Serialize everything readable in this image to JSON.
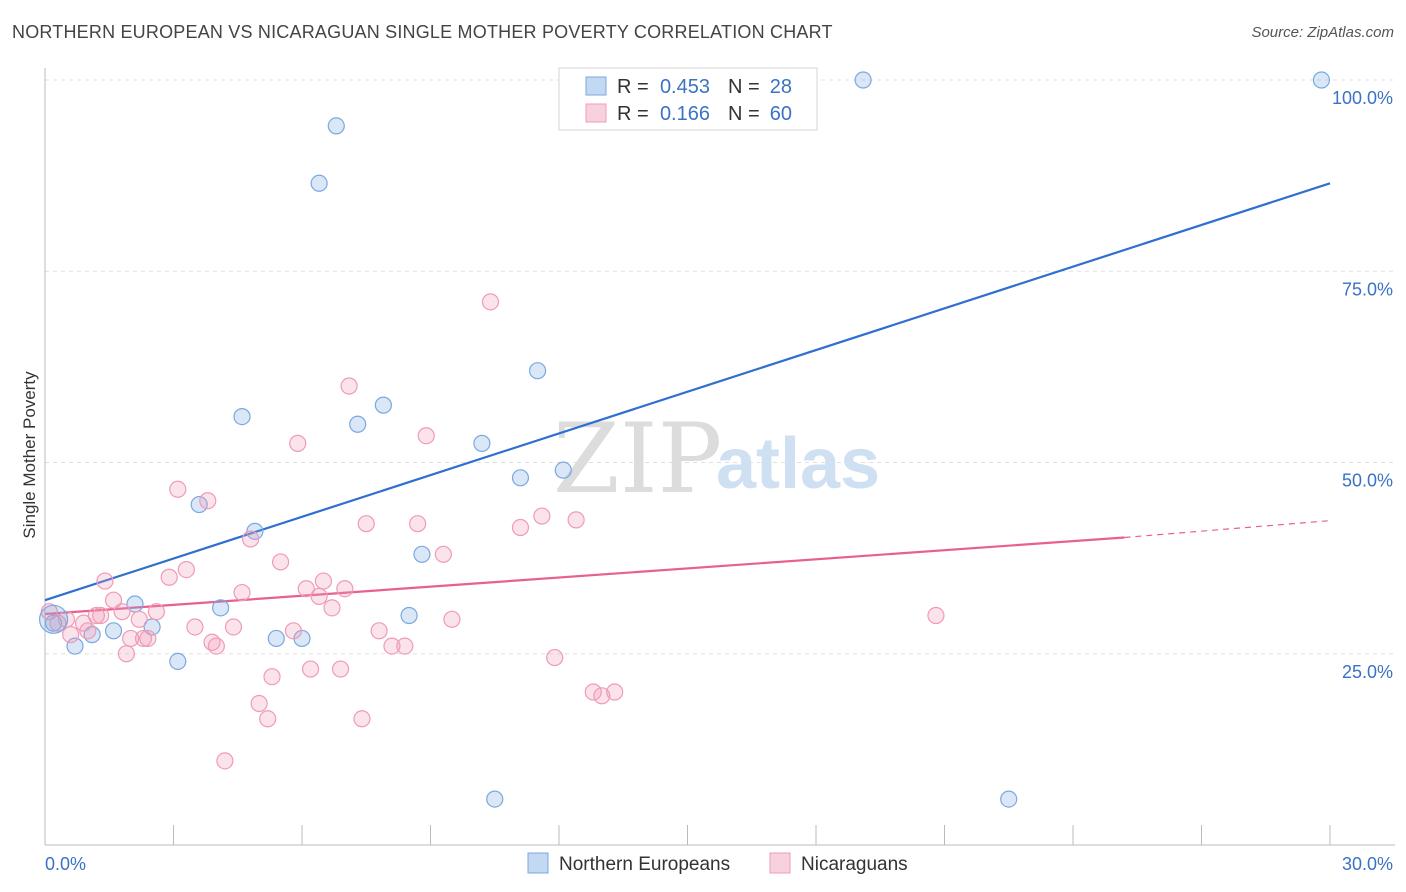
{
  "header": {
    "title": "NORTHERN EUROPEAN VS NICARAGUAN SINGLE MOTHER POVERTY CORRELATION CHART",
    "source": "Source: ZipAtlas.com"
  },
  "watermark": {
    "part1": "ZIP",
    "part2": "atlas"
  },
  "chart_data": {
    "type": "scatter",
    "ylabel": "Single Mother Poverty",
    "xlim": [
      0,
      30
    ],
    "ylim": [
      0,
      100
    ],
    "x_tick_labels": [
      "0.0%",
      "30.0%"
    ],
    "y_ticks": [
      25,
      50,
      75,
      100
    ],
    "y_tick_labels": [
      "25.0%",
      "50.0%",
      "75.0%",
      "100.0%"
    ],
    "grid": true,
    "legend": {
      "position": "top-center",
      "rows": [
        {
          "r_label": "R =",
          "r_value": "0.453",
          "n_label": "N =",
          "n_value": "28",
          "color": "#7aa8e0"
        },
        {
          "r_label": "R =",
          "r_value": "0.166",
          "n_label": "N =",
          "n_value": "60",
          "color": "#f09ab8"
        }
      ]
    },
    "series": [
      {
        "name": "Northern Europeans",
        "color": "#7aa8e0",
        "line_color": "#2e6fd0",
        "trend": {
          "x0": 0,
          "y0": 32,
          "x1": 30,
          "y1": 86.5
        },
        "points": [
          [
            0.2,
            29
          ],
          [
            0.7,
            26
          ],
          [
            1.1,
            27.5
          ],
          [
            1.6,
            28
          ],
          [
            2.1,
            31.5
          ],
          [
            2.5,
            28.5
          ],
          [
            3.1,
            24
          ],
          [
            3.6,
            44.5
          ],
          [
            4.1,
            31
          ],
          [
            4.6,
            56
          ],
          [
            4.9,
            41
          ],
          [
            5.4,
            27
          ],
          [
            6.0,
            27
          ],
          [
            6.4,
            86.5
          ],
          [
            6.8,
            94
          ],
          [
            7.3,
            55
          ],
          [
            7.9,
            57.5
          ],
          [
            8.8,
            38
          ],
          [
            8.5,
            30
          ],
          [
            10.2,
            52.5
          ],
          [
            10.5,
            6
          ],
          [
            11.1,
            48
          ],
          [
            11.5,
            62
          ],
          [
            12.1,
            49
          ],
          [
            13.4,
            100
          ],
          [
            19.1,
            100
          ],
          [
            22.5,
            6
          ],
          [
            29.8,
            100
          ]
        ]
      },
      {
        "name": "Nicaraguans",
        "color": "#f09ab8",
        "line_color": "#e8608f",
        "trend": {
          "x0": 0,
          "y0": 30.2,
          "x1": 25.2,
          "y1": 40.2
        },
        "trend_dashed": {
          "x0": 25.2,
          "y0": 40.2,
          "x1": 30,
          "y1": 42.4
        },
        "points": [
          [
            0.1,
            30.5
          ],
          [
            0.3,
            29
          ],
          [
            0.5,
            29.5
          ],
          [
            0.6,
            27.5
          ],
          [
            0.9,
            29
          ],
          [
            1.0,
            28
          ],
          [
            1.2,
            30
          ],
          [
            1.3,
            30
          ],
          [
            1.4,
            34.5
          ],
          [
            1.6,
            32
          ],
          [
            1.8,
            30.5
          ],
          [
            1.9,
            25
          ],
          [
            2.0,
            27
          ],
          [
            2.2,
            29.5
          ],
          [
            2.3,
            27
          ],
          [
            2.4,
            27
          ],
          [
            2.6,
            30.5
          ],
          [
            2.9,
            35
          ],
          [
            3.1,
            46.5
          ],
          [
            3.3,
            36
          ],
          [
            3.5,
            28.5
          ],
          [
            3.8,
            45
          ],
          [
            3.9,
            26.5
          ],
          [
            4.0,
            26
          ],
          [
            4.2,
            11
          ],
          [
            4.4,
            28.5
          ],
          [
            4.6,
            33
          ],
          [
            4.8,
            40
          ],
          [
            5.0,
            18.5
          ],
          [
            5.2,
            16.5
          ],
          [
            5.3,
            22
          ],
          [
            5.5,
            37
          ],
          [
            5.8,
            28
          ],
          [
            5.9,
            52.5
          ],
          [
            6.1,
            33.5
          ],
          [
            6.2,
            23
          ],
          [
            6.4,
            32.5
          ],
          [
            6.5,
            34.5
          ],
          [
            6.7,
            31
          ],
          [
            6.9,
            23
          ],
          [
            7.0,
            33.5
          ],
          [
            7.1,
            60
          ],
          [
            7.4,
            16.5
          ],
          [
            7.5,
            42
          ],
          [
            7.8,
            28
          ],
          [
            8.1,
            26
          ],
          [
            8.4,
            26
          ],
          [
            8.7,
            42
          ],
          [
            8.9,
            53.5
          ],
          [
            9.3,
            38
          ],
          [
            9.5,
            29.5
          ],
          [
            10.4,
            71
          ],
          [
            11.1,
            41.5
          ],
          [
            11.6,
            43
          ],
          [
            11.9,
            24.5
          ],
          [
            12.4,
            42.5
          ],
          [
            12.8,
            20
          ],
          [
            13.0,
            19.5
          ],
          [
            13.3,
            20
          ],
          [
            20.8,
            30
          ]
        ]
      }
    ]
  },
  "bottom_legend": [
    {
      "label": "Northern Europeans",
      "color": "#7aa8e0"
    },
    {
      "label": "Nicaraguans",
      "color": "#f09ab8"
    }
  ]
}
